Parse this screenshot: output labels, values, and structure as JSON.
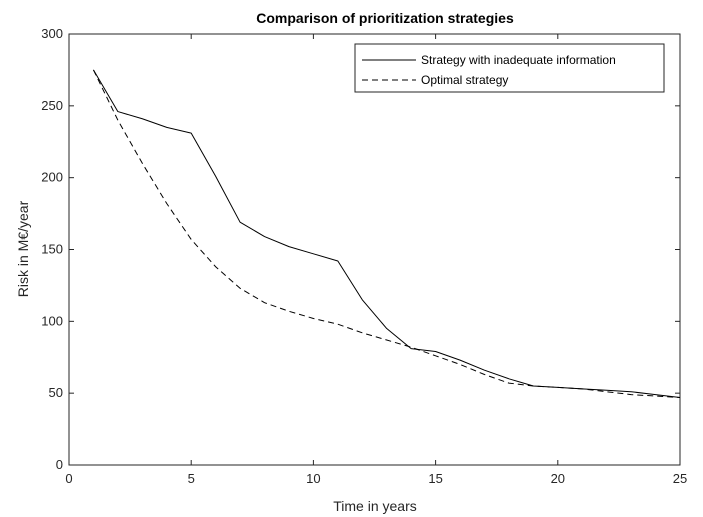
{
  "chart_data": {
    "type": "line",
    "title": "Comparison of prioritization strategies",
    "xlabel": "Time in years",
    "ylabel": "Risk in M€/year",
    "xlim": [
      0,
      25
    ],
    "ylim": [
      0,
      300
    ],
    "xticks": [
      0,
      5,
      10,
      15,
      20,
      25
    ],
    "yticks": [
      0,
      50,
      100,
      150,
      200,
      250,
      300
    ],
    "grid": false,
    "legend_position": "top-right",
    "x": [
      1,
      2,
      3,
      4,
      5,
      6,
      7,
      8,
      9,
      10,
      11,
      12,
      13,
      14,
      15,
      16,
      17,
      18,
      19,
      20,
      21,
      22,
      23,
      24,
      25
    ],
    "series": [
      {
        "name": "Strategy with inadequate information",
        "style": "solid",
        "color": "#000000",
        "values": [
          275,
          246,
          241,
          235,
          231,
          201,
          169,
          159,
          152,
          147,
          142,
          115,
          95,
          81,
          79,
          73,
          66,
          60,
          55,
          54,
          53,
          52,
          51,
          49,
          47
        ]
      },
      {
        "name": "Optimal strategy",
        "style": "dashed",
        "color": "#000000",
        "values": [
          275,
          240,
          210,
          182,
          157,
          138,
          123,
          113,
          107,
          102,
          98,
          92,
          87,
          82,
          76,
          70,
          63,
          57,
          55,
          54,
          53,
          51,
          49,
          48,
          47
        ]
      }
    ]
  }
}
